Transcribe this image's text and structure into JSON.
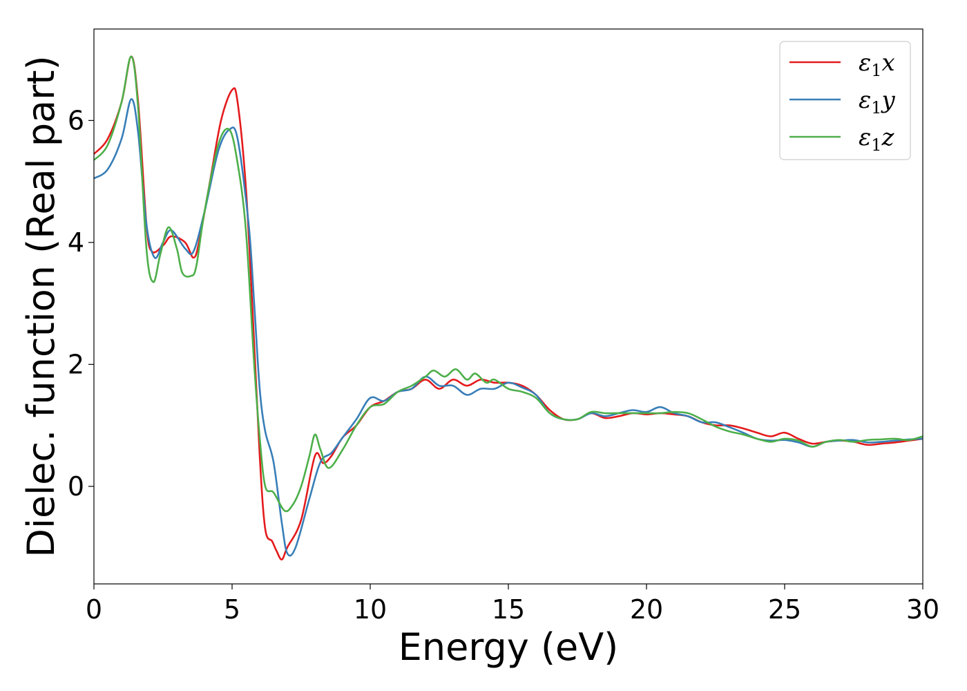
{
  "chart_data": {
    "type": "line",
    "title": "",
    "xlabel": "Energy (eV)",
    "ylabel": "Dielec. function (Real part)",
    "xlim": [
      0,
      30
    ],
    "ylim": [
      -1.6,
      7.5
    ],
    "xticks": [
      0,
      5,
      10,
      15,
      20,
      25,
      30
    ],
    "yticks": [
      0,
      2,
      4,
      6
    ],
    "grid": false,
    "legend": "top-right",
    "series": [
      {
        "name": "ε1x",
        "symbol": "ε",
        "sub": "1",
        "suffix": "x",
        "color": "#e41a1c",
        "x": [
          0,
          0.5,
          1.0,
          1.35,
          1.6,
          1.9,
          2.1,
          2.5,
          2.8,
          3.3,
          3.6,
          3.8,
          4.2,
          4.6,
          5.0,
          5.2,
          5.5,
          5.75,
          6.0,
          6.2,
          6.45,
          6.6,
          6.8,
          7.0,
          7.5,
          8.0,
          8.3,
          8.6,
          9.0,
          9.5,
          10.0,
          10.5,
          11.0,
          11.5,
          12.0,
          12.5,
          13.0,
          13.5,
          14.0,
          14.5,
          15.0,
          15.5,
          16.0,
          16.5,
          17.0,
          17.5,
          18.0,
          18.5,
          19.0,
          19.5,
          20.0,
          20.5,
          21.0,
          21.5,
          22.0,
          22.5,
          23.0,
          23.5,
          24.0,
          24.5,
          25.0,
          25.5,
          26.0,
          26.5,
          27.0,
          27.5,
          28.0,
          28.5,
          29.0,
          29.5,
          30.0
        ],
        "y": [
          5.45,
          5.7,
          6.3,
          7.05,
          6.3,
          4.3,
          3.85,
          3.95,
          4.1,
          4.0,
          3.75,
          4.0,
          5.0,
          6.0,
          6.5,
          6.3,
          4.9,
          2.8,
          0.5,
          -0.7,
          -0.9,
          -1.05,
          -1.2,
          -1.0,
          -0.55,
          0.5,
          0.38,
          0.5,
          0.8,
          1.0,
          1.3,
          1.4,
          1.55,
          1.6,
          1.75,
          1.6,
          1.75,
          1.65,
          1.75,
          1.7,
          1.7,
          1.65,
          1.5,
          1.25,
          1.1,
          1.1,
          1.2,
          1.12,
          1.15,
          1.2,
          1.18,
          1.2,
          1.18,
          1.15,
          1.05,
          1.0,
          1.0,
          0.95,
          0.88,
          0.82,
          0.88,
          0.78,
          0.7,
          0.73,
          0.75,
          0.73,
          0.68,
          0.7,
          0.72,
          0.75,
          0.78
        ]
      },
      {
        "name": "ε1y",
        "symbol": "ε",
        "sub": "1",
        "suffix": "y",
        "color": "#377eb8",
        "x": [
          0,
          0.5,
          1.0,
          1.35,
          1.6,
          1.9,
          2.2,
          2.5,
          2.8,
          3.3,
          3.6,
          4.0,
          4.5,
          4.9,
          5.2,
          5.6,
          5.8,
          6.0,
          6.2,
          6.5,
          6.8,
          7.0,
          7.3,
          7.8,
          8.2,
          8.6,
          9.0,
          9.5,
          10.0,
          10.5,
          11.0,
          11.5,
          12.0,
          12.5,
          13.0,
          13.5,
          14.0,
          14.5,
          15.0,
          15.5,
          16.0,
          16.5,
          17.0,
          17.5,
          18.0,
          18.5,
          19.0,
          19.5,
          20.0,
          20.5,
          21.0,
          21.5,
          22.0,
          22.5,
          23.0,
          23.5,
          24.0,
          24.5,
          25.0,
          25.5,
          26.0,
          26.5,
          27.0,
          27.5,
          28.0,
          28.5,
          29.0,
          29.5,
          30.0
        ],
        "y": [
          5.05,
          5.2,
          5.7,
          6.35,
          5.8,
          4.3,
          3.75,
          4.0,
          4.2,
          3.9,
          3.85,
          4.5,
          5.5,
          5.85,
          5.7,
          4.3,
          3.0,
          1.6,
          0.9,
          0.4,
          -0.6,
          -1.1,
          -1.0,
          -0.2,
          0.4,
          0.55,
          0.8,
          1.1,
          1.45,
          1.4,
          1.55,
          1.6,
          1.8,
          1.65,
          1.65,
          1.5,
          1.6,
          1.6,
          1.7,
          1.62,
          1.5,
          1.2,
          1.1,
          1.1,
          1.2,
          1.15,
          1.2,
          1.25,
          1.22,
          1.3,
          1.2,
          1.15,
          1.05,
          1.05,
          0.97,
          0.88,
          0.78,
          0.75,
          0.76,
          0.72,
          0.65,
          0.73,
          0.75,
          0.76,
          0.72,
          0.73,
          0.75,
          0.77,
          0.78
        ]
      },
      {
        "name": "ε1z",
        "symbol": "ε",
        "sub": "1",
        "suffix": "z",
        "color": "#4daf4a",
        "x": [
          0,
          0.5,
          1.0,
          1.35,
          1.6,
          1.9,
          2.15,
          2.4,
          2.7,
          3.0,
          3.2,
          3.5,
          3.7,
          4.0,
          4.5,
          4.9,
          5.2,
          5.5,
          5.8,
          6.0,
          6.2,
          6.5,
          6.9,
          7.2,
          7.5,
          7.8,
          8.0,
          8.2,
          8.5,
          9.0,
          9.5,
          10.0,
          10.5,
          11.0,
          11.5,
          12.0,
          12.3,
          12.7,
          13.1,
          13.5,
          13.8,
          14.2,
          14.5,
          15.0,
          15.5,
          16.0,
          16.5,
          17.0,
          17.5,
          18.0,
          18.5,
          19.0,
          19.5,
          20.0,
          20.5,
          21.0,
          21.5,
          22.0,
          22.5,
          23.0,
          23.5,
          24.0,
          24.5,
          25.0,
          25.5,
          26.0,
          26.5,
          27.0,
          27.5,
          28.0,
          28.5,
          29.0,
          29.5,
          30.0
        ],
        "y": [
          5.35,
          5.6,
          6.3,
          7.05,
          6.2,
          3.9,
          3.35,
          3.8,
          4.25,
          3.9,
          3.5,
          3.45,
          3.6,
          4.5,
          5.6,
          5.85,
          5.3,
          4.2,
          2.0,
          0.8,
          0.0,
          -0.1,
          -0.4,
          -0.3,
          0.0,
          0.5,
          0.85,
          0.6,
          0.3,
          0.6,
          1.0,
          1.3,
          1.35,
          1.55,
          1.65,
          1.8,
          1.9,
          1.8,
          1.92,
          1.75,
          1.85,
          1.7,
          1.75,
          1.6,
          1.55,
          1.45,
          1.2,
          1.1,
          1.1,
          1.22,
          1.2,
          1.2,
          1.2,
          1.2,
          1.2,
          1.22,
          1.2,
          1.1,
          0.98,
          0.9,
          0.85,
          0.78,
          0.73,
          0.78,
          0.75,
          0.65,
          0.73,
          0.76,
          0.73,
          0.76,
          0.77,
          0.78,
          0.76,
          0.82
        ]
      }
    ]
  }
}
